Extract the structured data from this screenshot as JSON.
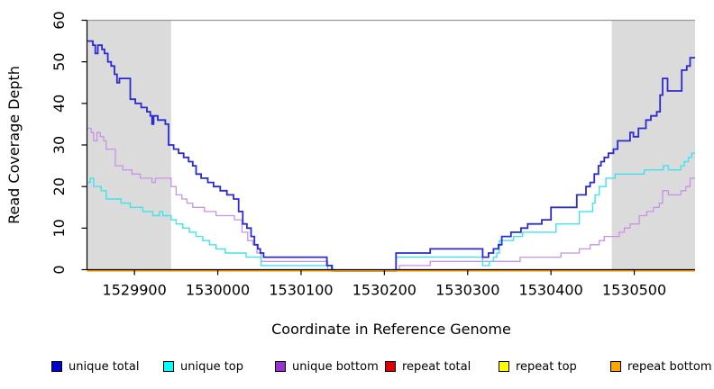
{
  "chart_data": {
    "type": "line",
    "subtype": "step-after",
    "xlabel": "Coordinate in Reference Genome",
    "ylabel": "Read Coverage Depth",
    "x_range": [
      1529843,
      1530573
    ],
    "y_range": [
      0,
      60
    ],
    "x_ticks": [
      1529900,
      1530000,
      1530100,
      1530200,
      1530300,
      1530400,
      1530500
    ],
    "y_ticks": [
      0,
      10,
      20,
      30,
      40,
      50,
      60
    ],
    "grid": false,
    "legend_position": "bottom",
    "band_color": "#dbdbdb",
    "top_border_color": "#9a9a9a",
    "axis_color": "#000000",
    "shaded_regions": [
      {
        "from": 1529843,
        "to": 1529944
      },
      {
        "from": 1530473,
        "to": 1530573
      }
    ],
    "series": [
      {
        "name": "unique bottom",
        "line_color": "#c793e8",
        "legend_color": "#9932cc",
        "width": 1.3,
        "points": [
          [
            1529843,
            34
          ],
          [
            1529848,
            33
          ],
          [
            1529851,
            31
          ],
          [
            1529855,
            33
          ],
          [
            1529859,
            32
          ],
          [
            1529863,
            31
          ],
          [
            1529866,
            29
          ],
          [
            1529877,
            25
          ],
          [
            1529886,
            24
          ],
          [
            1529897,
            23
          ],
          [
            1529907,
            22
          ],
          [
            1529921,
            21
          ],
          [
            1529925,
            22
          ],
          [
            1529944,
            20
          ],
          [
            1529950,
            18
          ],
          [
            1529957,
            17
          ],
          [
            1529963,
            16
          ],
          [
            1529970,
            15
          ],
          [
            1529984,
            14
          ],
          [
            1529998,
            13
          ],
          [
            1530020,
            12
          ],
          [
            1530029,
            9
          ],
          [
            1530036,
            7
          ],
          [
            1530042,
            6
          ],
          [
            1530047,
            4
          ],
          [
            1530052,
            2
          ],
          [
            1530132,
            0
          ],
          [
            1530218,
            1
          ],
          [
            1530255,
            2
          ],
          [
            1530363,
            3
          ],
          [
            1530412,
            4
          ],
          [
            1530434,
            5
          ],
          [
            1530447,
            6
          ],
          [
            1530458,
            7
          ],
          [
            1530464,
            8
          ],
          [
            1530482,
            9
          ],
          [
            1530488,
            10
          ],
          [
            1530495,
            11
          ],
          [
            1530506,
            13
          ],
          [
            1530515,
            14
          ],
          [
            1530523,
            15
          ],
          [
            1530530,
            16
          ],
          [
            1530534,
            19
          ],
          [
            1530541,
            18
          ],
          [
            1530556,
            19
          ],
          [
            1530562,
            20
          ],
          [
            1530567,
            22
          ]
        ]
      },
      {
        "name": "unique top",
        "line_color": "#40e2ee",
        "legend_color": "#00ffff",
        "width": 1.4,
        "points": [
          [
            1529843,
            21
          ],
          [
            1529847,
            22
          ],
          [
            1529851,
            20
          ],
          [
            1529860,
            19
          ],
          [
            1529866,
            17
          ],
          [
            1529884,
            16
          ],
          [
            1529895,
            15
          ],
          [
            1529910,
            14
          ],
          [
            1529922,
            13
          ],
          [
            1529930,
            14
          ],
          [
            1529934,
            13
          ],
          [
            1529944,
            12
          ],
          [
            1529950,
            11
          ],
          [
            1529958,
            10
          ],
          [
            1529966,
            9
          ],
          [
            1529974,
            8
          ],
          [
            1529982,
            7
          ],
          [
            1529990,
            6
          ],
          [
            1529998,
            5
          ],
          [
            1530009,
            4
          ],
          [
            1530034,
            3
          ],
          [
            1530052,
            1
          ],
          [
            1530138,
            0
          ],
          [
            1530214,
            3
          ],
          [
            1530318,
            1
          ],
          [
            1530326,
            2
          ],
          [
            1530331,
            3
          ],
          [
            1530335,
            4
          ],
          [
            1530338,
            7
          ],
          [
            1530355,
            8
          ],
          [
            1530366,
            9
          ],
          [
            1530406,
            11
          ],
          [
            1530434,
            14
          ],
          [
            1530450,
            16
          ],
          [
            1530453,
            18
          ],
          [
            1530458,
            20
          ],
          [
            1530466,
            22
          ],
          [
            1530477,
            23
          ],
          [
            1530512,
            24
          ],
          [
            1530535,
            25
          ],
          [
            1530541,
            24
          ],
          [
            1530556,
            25
          ],
          [
            1530560,
            26
          ],
          [
            1530565,
            27
          ],
          [
            1530569,
            28
          ]
        ]
      },
      {
        "name": "unique total",
        "line_color": "#2b2bd0",
        "legend_color": "#0000cd",
        "width": 1.8,
        "points": [
          [
            1529843,
            55
          ],
          [
            1529850,
            54
          ],
          [
            1529853,
            52
          ],
          [
            1529856,
            54
          ],
          [
            1529861,
            53
          ],
          [
            1529864,
            52
          ],
          [
            1529868,
            50
          ],
          [
            1529872,
            49
          ],
          [
            1529876,
            47
          ],
          [
            1529879,
            45
          ],
          [
            1529882,
            46
          ],
          [
            1529895,
            41
          ],
          [
            1529901,
            40
          ],
          [
            1529908,
            39
          ],
          [
            1529915,
            38
          ],
          [
            1529919,
            37
          ],
          [
            1529921,
            35
          ],
          [
            1529923,
            37
          ],
          [
            1529928,
            36
          ],
          [
            1529937,
            35
          ],
          [
            1529941,
            30
          ],
          [
            1529947,
            29
          ],
          [
            1529953,
            28
          ],
          [
            1529959,
            27
          ],
          [
            1529965,
            26
          ],
          [
            1529970,
            25
          ],
          [
            1529974,
            23
          ],
          [
            1529980,
            22
          ],
          [
            1529988,
            21
          ],
          [
            1529995,
            20
          ],
          [
            1530003,
            19
          ],
          [
            1530011,
            18
          ],
          [
            1530019,
            17
          ],
          [
            1530025,
            14
          ],
          [
            1530030,
            11
          ],
          [
            1530035,
            10
          ],
          [
            1530040,
            8
          ],
          [
            1530044,
            6
          ],
          [
            1530048,
            5
          ],
          [
            1530051,
            4
          ],
          [
            1530055,
            3
          ],
          [
            1530131,
            1
          ],
          [
            1530137,
            0
          ],
          [
            1530214,
            4
          ],
          [
            1530255,
            5
          ],
          [
            1530318,
            3
          ],
          [
            1530325,
            4
          ],
          [
            1530331,
            5
          ],
          [
            1530337,
            6
          ],
          [
            1530341,
            8
          ],
          [
            1530352,
            9
          ],
          [
            1530364,
            10
          ],
          [
            1530372,
            11
          ],
          [
            1530389,
            12
          ],
          [
            1530400,
            15
          ],
          [
            1530431,
            18
          ],
          [
            1530442,
            20
          ],
          [
            1530447,
            21
          ],
          [
            1530452,
            23
          ],
          [
            1530457,
            25
          ],
          [
            1530460,
            26
          ],
          [
            1530464,
            27
          ],
          [
            1530469,
            28
          ],
          [
            1530475,
            29
          ],
          [
            1530480,
            31
          ],
          [
            1530495,
            33
          ],
          [
            1530499,
            32
          ],
          [
            1530505,
            34
          ],
          [
            1530514,
            36
          ],
          [
            1530520,
            37
          ],
          [
            1530527,
            38
          ],
          [
            1530531,
            42
          ],
          [
            1530534,
            46
          ],
          [
            1530540,
            43
          ],
          [
            1530557,
            48
          ],
          [
            1530563,
            49
          ],
          [
            1530567,
            51
          ]
        ]
      },
      {
        "name": "repeat total",
        "line_color": "#cc0000",
        "legend_color": "#dd0000",
        "width": 1.3,
        "points": [
          [
            1529843,
            0
          ]
        ]
      },
      {
        "name": "repeat top",
        "line_color": "#ffff00",
        "legend_color": "#ffff00",
        "width": 1.3,
        "points": [
          [
            1529843,
            0
          ]
        ]
      },
      {
        "name": "repeat bottom",
        "line_color": "#ff9d00",
        "legend_color": "#ffa500",
        "width": 1.7,
        "points": [
          [
            1529843,
            0
          ]
        ]
      }
    ]
  },
  "legend": {
    "items": [
      {
        "label": "unique total",
        "color": "#0000cd"
      },
      {
        "label": "unique top",
        "color": "#00ffff"
      },
      {
        "label": "unique bottom",
        "color": "#9932cc"
      },
      {
        "label": "repeat total",
        "color": "#dd0000"
      },
      {
        "label": "repeat top",
        "color": "#ffff00"
      },
      {
        "label": "repeat bottom",
        "color": "#ffa500"
      }
    ]
  },
  "axis_titles": {
    "x": "Coordinate in Reference Genome",
    "y": "Read Coverage Depth"
  }
}
